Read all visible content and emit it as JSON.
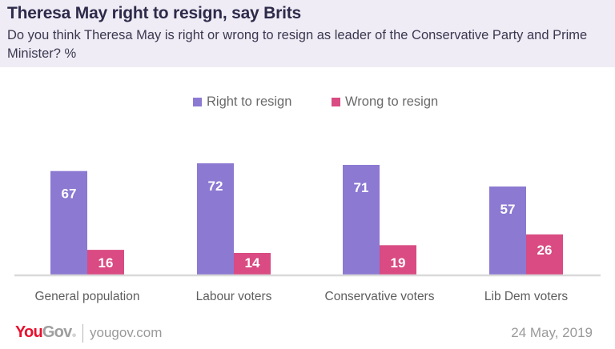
{
  "header": {
    "title": "Theresa May right to resign, say Brits",
    "subtitle": "Do you think Theresa May is right or wrong to resign as leader of the Conservative Party and Prime Minister? %"
  },
  "legend": [
    {
      "label": "Right to resign",
      "color": "#8c79d2"
    },
    {
      "label": "Wrong to resign",
      "color": "#d94b82"
    }
  ],
  "chart_data": {
    "type": "bar",
    "title": "Theresa May right to resign, say Brits",
    "subtitle": "Do you think Theresa May is right or wrong to resign as leader of the Conservative Party and Prime Minister? %",
    "xlabel": "",
    "ylabel": "%",
    "ylim": [
      0,
      75
    ],
    "grid": false,
    "legend_position": "top-center",
    "categories": [
      "General population",
      "Labour voters",
      "Conservative voters",
      "Lib Dem voters"
    ],
    "series": [
      {
        "name": "Right to resign",
        "color": "#8c79d2",
        "values": [
          67,
          72,
          71,
          57
        ]
      },
      {
        "name": "Wrong to resign",
        "color": "#d94b82",
        "values": [
          16,
          14,
          19,
          26
        ]
      }
    ]
  },
  "footer": {
    "logo_you": "You",
    "logo_gov": "Gov",
    "logo_reg": "®",
    "url": "yougov.com",
    "date": "24 May, 2019"
  },
  "colors": {
    "header_bg": "#efecf5",
    "title": "#2d2a4a",
    "baseline": "#d9d9d9",
    "brand_red": "#e8102e"
  }
}
